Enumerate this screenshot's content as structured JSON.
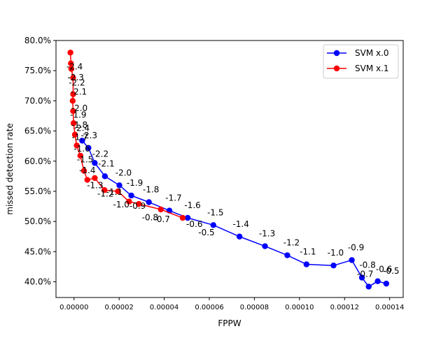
{
  "chart_data": {
    "type": "line",
    "title": "",
    "xlabel": "FPPW",
    "ylabel": "missed detection rate",
    "xlim": [
      -8e-06,
      0.000146
    ],
    "ylim": [
      37.4,
      80.0
    ],
    "x_ticks": [
      0,
      2e-05,
      4e-05,
      6e-05,
      8e-05,
      0.0001,
      0.00012,
      0.00014
    ],
    "x_tick_labels": [
      "0.00000",
      "0.00002",
      "0.00004",
      "0.00006",
      "0.00008",
      "0.00010",
      "0.00012",
      "0.00014"
    ],
    "y_ticks": [
      40,
      45,
      50,
      55,
      60,
      65,
      70,
      75,
      80
    ],
    "y_tick_labels": [
      "40.0%",
      "45.0%",
      "50.0%",
      "55.0%",
      "60.0%",
      "65.0%",
      "70.0%",
      "75.0%",
      "80.0%"
    ],
    "legend": {
      "placement": "top-right",
      "entries": [
        "SVM x.0",
        "SVM x.1"
      ]
    },
    "series": [
      {
        "name": "SVM x.0",
        "color": "#0000ff",
        "x": [
          3.6e-06,
          6.4e-06,
          9.2e-06,
          1.37e-05,
          2.01e-05,
          2.54e-05,
          3.32e-05,
          4.23e-05,
          5.04e-05,
          6.18e-05,
          7.34e-05,
          8.47e-05,
          9.46e-05,
          0.0001031,
          0.0001151,
          0.0001232,
          0.0001277,
          0.0001307,
          0.0001347,
          0.0001385
        ],
        "y": [
          63.4,
          62.2,
          59.7,
          57.5,
          56.0,
          54.3,
          53.2,
          51.8,
          50.6,
          49.4,
          47.5,
          45.9,
          44.4,
          42.9,
          42.7,
          43.6,
          40.7,
          39.2,
          40.1,
          39.7
        ],
        "labels": [
          "-2.4",
          "-2.3",
          "-2.2",
          "-2.1",
          "-2.0",
          "-1.9",
          "-1.8",
          "-1.7",
          "-1.6",
          "-1.5",
          "-1.4",
          "-1.3",
          "-1.2",
          "-1.1",
          "-1.0",
          "-0.9",
          "-0.8",
          "-0.7",
          "-0.6",
          "-0.5"
        ],
        "label_offsets": [
          [
            -1,
            -14
          ],
          [
            1,
            -14
          ],
          [
            8,
            -9
          ],
          [
            2,
            -14
          ],
          [
            6,
            -14
          ],
          [
            5,
            -14
          ],
          [
            3,
            -14
          ],
          [
            6,
            -14
          ],
          [
            7,
            -14
          ],
          [
            3,
            -14
          ],
          [
            2,
            -14
          ],
          [
            3,
            -14
          ],
          [
            6,
            -14
          ],
          [
            2,
            -14
          ],
          [
            3,
            -14
          ],
          [
            6,
            -14
          ],
          [
            8,
            -14
          ],
          [
            -5,
            -14
          ],
          [
            9,
            -13
          ],
          [
            7,
            -14
          ]
        ]
      },
      {
        "name": "SVM x.1",
        "color": "#ff0000",
        "x": [
          -1.6e-06,
          -1.4e-06,
          -1.2e-06,
          -4e-07,
          -4e-07,
          -6e-07,
          -4e-07,
          -2e-07,
          4e-07,
          1.2e-06,
          2.8e-06,
          4.4e-06,
          5.9e-06,
          9.2e-06,
          1.35e-05,
          1.95e-05,
          2.44e-05,
          2.87e-05,
          3.85e-05,
          4.82e-05
        ],
        "y": [
          78.0,
          76.2,
          75.3,
          73.8,
          71.1,
          70.0,
          68.3,
          66.3,
          64.4,
          62.6,
          60.9,
          58.4,
          56.9,
          57.2,
          55.2,
          55.0,
          53.3,
          52.9,
          52.0,
          50.6
        ],
        "labels": [
          "-2.4",
          "-2.3",
          "-2.2",
          "-2.1",
          "-2.0",
          "-1.9",
          "-1.8",
          "-1.7",
          "-1.6",
          "-1.5",
          "-1.4",
          "-1.3",
          "-1.2",
          "-1.1",
          "-1.0",
          "-0.9",
          "-0.8",
          "-0.7",
          "-0.6",
          "-0.5"
        ],
        "label_offsets": [
          [
            6,
            24
          ],
          [
            7,
            24
          ],
          [
            8,
            24
          ],
          [
            8,
            24
          ],
          [
            9,
            24
          ],
          [
            8,
            24
          ],
          [
            9,
            24
          ],
          [
            9,
            24
          ],
          [
            10,
            24
          ],
          [
            12,
            24
          ],
          [
            10,
            25
          ],
          [
            16,
            25
          ],
          [
            26,
            24
          ],
          [
            28,
            24
          ],
          [
            24,
            25
          ],
          [
            28,
            25
          ],
          [
            30,
            27
          ],
          [
            33,
            26
          ],
          [
            48,
            25
          ],
          [
            34,
            25
          ]
        ]
      }
    ]
  }
}
